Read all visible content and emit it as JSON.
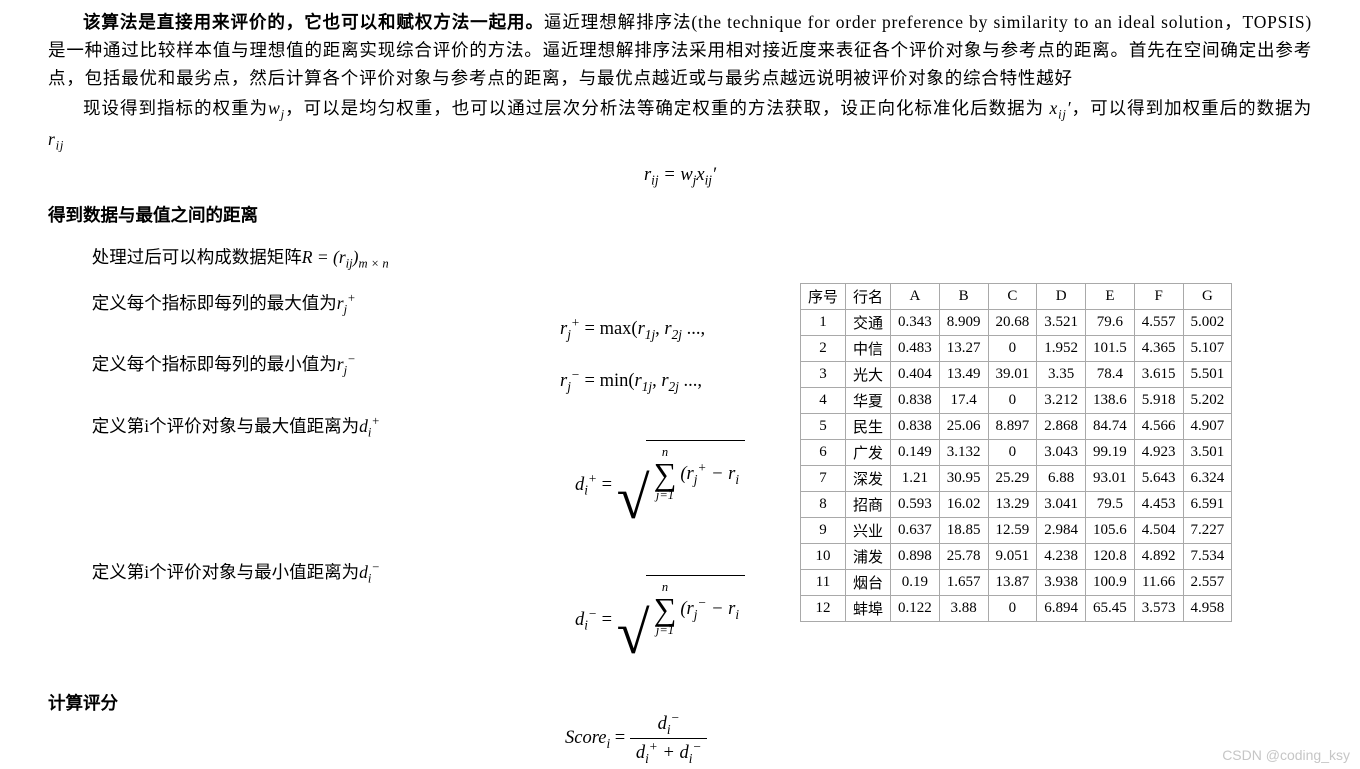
{
  "para1_lead_bold": "该算法是直接用来评价的，它也可以和赋权方法一起用。",
  "para1_rest": "逼近理想解排序法(the technique for order preference by similarity to an ideal solution，TOPSIS)是一种通过比较样本值与理想值的距离实现综合评价的方法。逼近理想解排序法采用相对接近度来表征各个评价对象与参考点的距离。首先在空间确定出参考点，包括最优和最劣点，然后计算各个评价对象与参考点的距离，与最优点越近或与最劣点越远说明被评价对象的综合特性越好",
  "para2_a": "现设得到指标的权重为",
  "para2_b": "，可以是均匀权重，也可以通过层次分析法等确定权重的方法获取，设正向化标准化后数据为",
  "para2_c": "，可以得到加权重后的数据为",
  "sec1": "得到数据与最值之间的距离",
  "def1_a": "处理过后可以构成数据矩阵",
  "def2_a": "定义每个指标即每列的最大值为",
  "def3_a": "定义每个指标即每列的最小值为",
  "def4_a": "定义第i个评价对象与最大值距离为",
  "def5_a": "定义第i个评价对象与最小值距离为",
  "sec2": "计算评分",
  "f_rij": "r",
  "f_eq": " = ",
  "formula_rij_rhs": "w",
  "formula_rjplus": "r",
  "formula_max": " = max(",
  "formula_min": " = min(",
  "score_lhs": "Score",
  "table": {
    "headers": [
      "序号",
      "行名",
      "A",
      "B",
      "C",
      "D",
      "E",
      "F",
      "G"
    ],
    "rows": [
      [
        "1",
        "交通",
        "0.343",
        "8.909",
        "20.68",
        "3.521",
        "79.6",
        "4.557",
        "5.002"
      ],
      [
        "2",
        "中信",
        "0.483",
        "13.27",
        "0",
        "1.952",
        "101.5",
        "4.365",
        "5.107"
      ],
      [
        "3",
        "光大",
        "0.404",
        "13.49",
        "39.01",
        "3.35",
        "78.4",
        "3.615",
        "5.501"
      ],
      [
        "4",
        "华夏",
        "0.838",
        "17.4",
        "0",
        "3.212",
        "138.6",
        "5.918",
        "5.202"
      ],
      [
        "5",
        "民生",
        "0.838",
        "25.06",
        "8.897",
        "2.868",
        "84.74",
        "4.566",
        "4.907"
      ],
      [
        "6",
        "广发",
        "0.149",
        "3.132",
        "0",
        "3.043",
        "99.19",
        "4.923",
        "3.501"
      ],
      [
        "7",
        "深发",
        "1.21",
        "30.95",
        "25.29",
        "6.88",
        "93.01",
        "5.643",
        "6.324"
      ],
      [
        "8",
        "招商",
        "0.593",
        "16.02",
        "13.29",
        "3.041",
        "79.5",
        "4.453",
        "6.591"
      ],
      [
        "9",
        "兴业",
        "0.637",
        "18.85",
        "12.59",
        "2.984",
        "105.6",
        "4.504",
        "7.227"
      ],
      [
        "10",
        "浦发",
        "0.898",
        "25.78",
        "9.051",
        "4.238",
        "120.8",
        "4.892",
        "7.534"
      ],
      [
        "11",
        "烟台",
        "0.19",
        "1.657",
        "13.87",
        "3.938",
        "100.9",
        "11.66",
        "2.557"
      ],
      [
        "12",
        "蚌埠",
        "0.122",
        "3.88",
        "0",
        "6.894",
        "65.45",
        "3.573",
        "4.958"
      ]
    ]
  },
  "watermark": "CSDN @coding_ksy"
}
